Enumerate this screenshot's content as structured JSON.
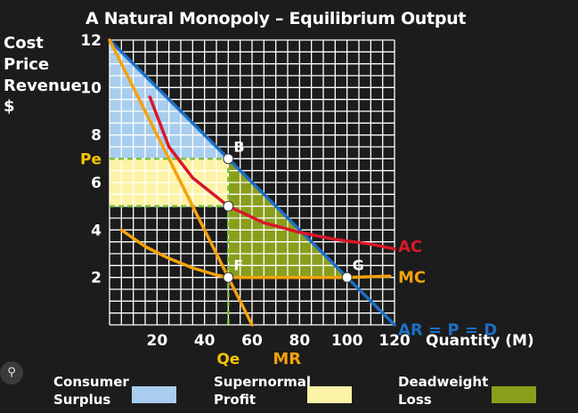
{
  "chart_data": {
    "type": "line",
    "title": "A Natural Monopoly – Equilibrium Output",
    "ylabel_lines": [
      "Cost",
      "Price",
      "Revenue",
      "$"
    ],
    "xlabel": "Quantity (M)",
    "xlim": [
      0,
      120
    ],
    "ylim": [
      0,
      12
    ],
    "x_ticks": [
      20,
      40,
      60,
      80,
      100,
      120
    ],
    "y_ticks": [
      2,
      4,
      6,
      8,
      10,
      12
    ],
    "grid": true,
    "series": [
      {
        "name": "AR = P = D",
        "color": "#1c6fc4",
        "x": [
          0,
          120
        ],
        "y": [
          12,
          0
        ]
      },
      {
        "name": "MR",
        "color": "#f4a20c",
        "x": [
          0,
          60
        ],
        "y": [
          12,
          0
        ]
      },
      {
        "name": "AC",
        "color": "#d8182a",
        "x": [
          17,
          25,
          35,
          50,
          65,
          80,
          95,
          110,
          120
        ],
        "y": [
          9.6,
          7.5,
          6.2,
          5.0,
          4.3,
          3.9,
          3.6,
          3.4,
          3.2
        ]
      },
      {
        "name": "MC",
        "color": "#f4a20c",
        "x": [
          5,
          15,
          25,
          35,
          45,
          50,
          60,
          80,
          100,
          118
        ],
        "y": [
          4.0,
          3.3,
          2.8,
          2.4,
          2.1,
          2.0,
          2.0,
          2.0,
          2.0,
          2.05
        ]
      }
    ],
    "points": [
      {
        "label": "B",
        "x": 50,
        "y": 7
      },
      {
        "label": "",
        "x": 50,
        "y": 5
      },
      {
        "label": "F",
        "x": 50,
        "y": 2
      },
      {
        "label": "G",
        "x": 100,
        "y": 2
      }
    ],
    "annotations": {
      "price_label": "Pe",
      "price_value": 7,
      "quantity_label": "Qe",
      "quantity_value": 50
    },
    "regions": [
      {
        "name": "Consumer Surplus",
        "color": "#a9cdee"
      },
      {
        "name": "Supernormal Profit",
        "color": "#fdf3a6"
      },
      {
        "name": "Deadweight Loss",
        "color": "#8a9e1c"
      }
    ]
  },
  "legend": [
    {
      "line1": "Consumer",
      "line2": "Surplus",
      "color": "#a9cdee"
    },
    {
      "line1": "Supernormal",
      "line2": "Profit",
      "color": "#fdf3a6"
    },
    {
      "line1": "Deadweight",
      "line2": "Loss",
      "color": "#8a9e1c"
    }
  ],
  "corner_icon": "lens-icon",
  "colors": {
    "background": "#1c1c1c",
    "grid": "#ffffff",
    "guide": "#7cc23a"
  }
}
